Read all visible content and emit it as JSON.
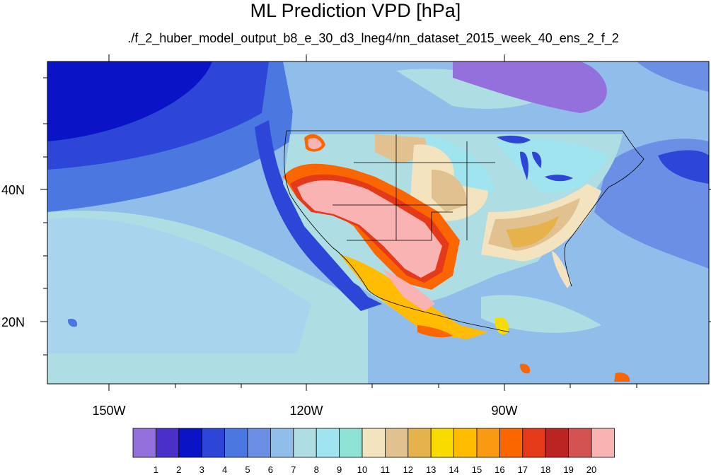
{
  "title": "ML Prediction VPD [hPa]",
  "subtitle": "./f_2_huber_model_output_b8_e_30_d3_lneg4/nn_dataset_2015_week_40_ens_2_f_2",
  "map": {
    "lon_labels": [
      "150W",
      "120W",
      "90W"
    ],
    "lat_labels": [
      "40N",
      "20N"
    ]
  },
  "colorbar": {
    "labels": [
      "1",
      "2",
      "3",
      "4",
      "5",
      "6",
      "7",
      "8",
      "9",
      "10",
      "11",
      "12",
      "13",
      "14",
      "15",
      "16",
      "17",
      "18",
      "19",
      "20"
    ],
    "colors": [
      "#9370DB",
      "#4A2FC8",
      "#0A14C6",
      "#2D46D8",
      "#4A78E0",
      "#6C8FE6",
      "#91BDEA",
      "#AEDDE4",
      "#9FE4EE",
      "#8FE3D6",
      "#F3E3BF",
      "#E0C18F",
      "#E6B24C",
      "#F9DB00",
      "#FFBC00",
      "#F99A12",
      "#FC6600",
      "#E53A1A",
      "#BC2423",
      "#D35352",
      "#F9B3B3"
    ]
  }
}
